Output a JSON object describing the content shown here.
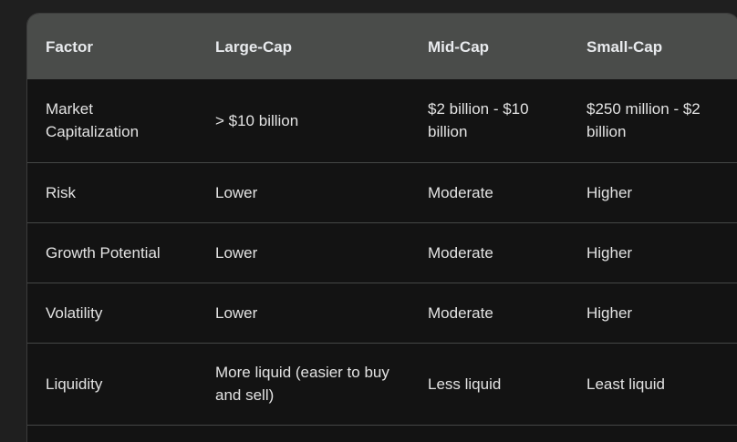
{
  "table": {
    "headers": [
      "Factor",
      "Large-Cap",
      "Mid-Cap",
      "Small-Cap"
    ],
    "rows": [
      [
        "Market Capitalization",
        "> $10 billion",
        "$2 billion - $10 billion",
        "$250 million - $2 billion"
      ],
      [
        "Risk",
        "Lower",
        "Moderate",
        "Higher"
      ],
      [
        "Growth Potential",
        "Lower",
        "Moderate",
        "Higher"
      ],
      [
        "Volatility",
        "Lower",
        "Moderate",
        "Higher"
      ],
      [
        "Liquidity",
        "More liquid (easier to buy and sell)",
        "Less liquid",
        "Least liquid"
      ]
    ]
  },
  "colors": {
    "page_background": "#1f1f1f",
    "table_background": "#131313",
    "header_background": "#4a4c4a",
    "text": "#e3e3e3",
    "divider": "#444746"
  }
}
